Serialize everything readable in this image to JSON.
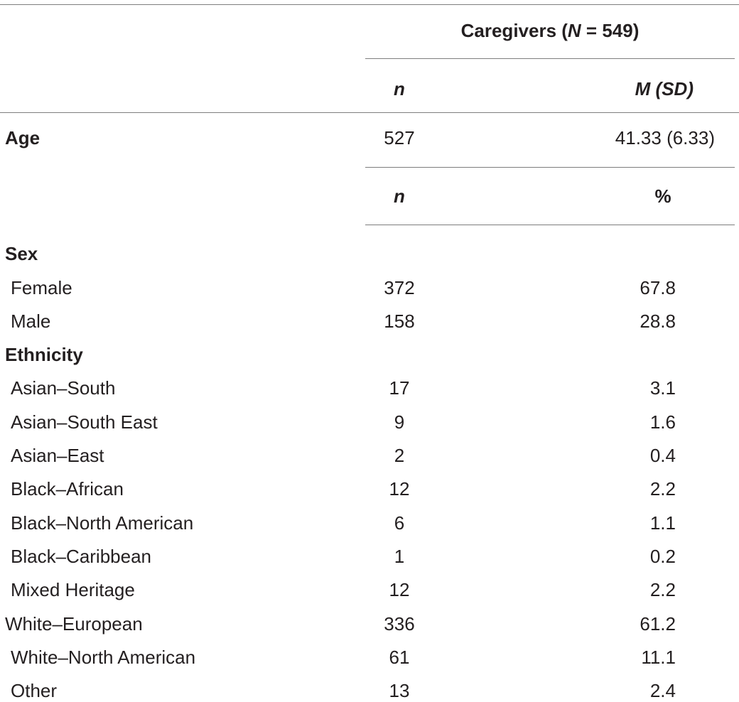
{
  "table": {
    "group_header": {
      "prefix": "Caregivers (",
      "n_symbol": "N",
      "suffix": " = 549)"
    },
    "age_header": {
      "n": "n",
      "stat": "M (SD)"
    },
    "age_row": {
      "label": "Age",
      "n": "527",
      "value": "41.33 (6.33)"
    },
    "pct_header": {
      "n": "n",
      "stat": "%"
    },
    "sections": [
      {
        "label": "Sex",
        "rows": [
          {
            "label": "Female",
            "n": "372",
            "pct": "67.8"
          },
          {
            "label": "Male",
            "n": "158",
            "pct": "28.8"
          }
        ]
      },
      {
        "label": "Ethnicity",
        "rows": [
          {
            "label": "Asian–South",
            "n": "17",
            "pct": "3.1"
          },
          {
            "label": "Asian–South East",
            "n": "9",
            "pct": "1.6"
          },
          {
            "label": "Asian–East",
            "n": "2",
            "pct": "0.4"
          },
          {
            "label": "Black–African",
            "n": "12",
            "pct": "2.2"
          },
          {
            "label": "Black–North American",
            "n": "6",
            "pct": "1.1"
          },
          {
            "label": "Black–Caribbean",
            "n": "1",
            "pct": "0.2"
          },
          {
            "label": "Mixed Heritage",
            "n": "12",
            "pct": "2.2"
          },
          {
            "label": "White–European",
            "n": "336",
            "pct": "61.2"
          },
          {
            "label": "White–North American",
            "n": "61",
            "pct": "11.1"
          },
          {
            "label": "Other",
            "n": "13",
            "pct": "2.4"
          }
        ]
      }
    ]
  }
}
